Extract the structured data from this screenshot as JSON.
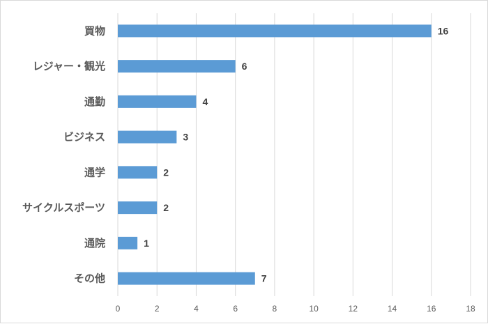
{
  "chart_data": {
    "type": "bar",
    "orientation": "horizontal",
    "categories": [
      "買物",
      "レジャー・観光",
      "通勤",
      "ビジネス",
      "通学",
      "サイクルスポーツ",
      "通院",
      "その他"
    ],
    "values": [
      16,
      6,
      4,
      3,
      2,
      2,
      1,
      7
    ],
    "xlim": [
      0,
      18
    ],
    "x_ticks": [
      0,
      2,
      4,
      6,
      8,
      10,
      12,
      14,
      16,
      18
    ],
    "grid": true,
    "data_labels": true,
    "bar_color": "#5b9bd5"
  }
}
